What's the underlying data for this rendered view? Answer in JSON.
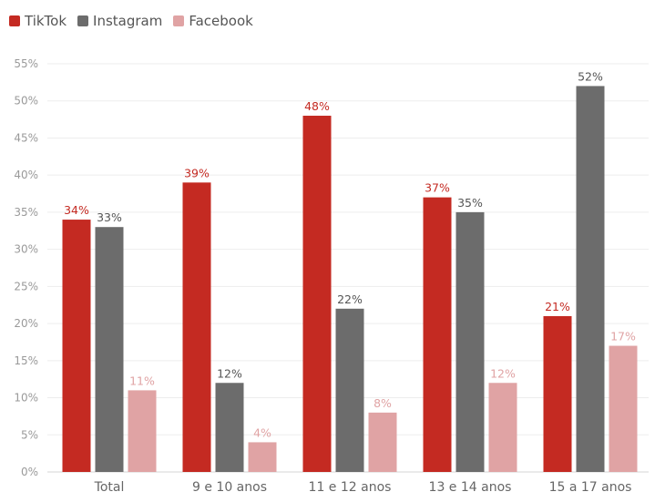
{
  "chart_data": {
    "type": "bar",
    "categories": [
      "Total",
      "9 e 10 anos",
      "11 e 12 anos",
      "13 e 14 anos",
      "15 a 17 anos"
    ],
    "series": [
      {
        "name": "TikTok",
        "color": "#c42a22",
        "values": [
          34,
          39,
          48,
          37,
          21
        ],
        "labels": [
          "34%",
          "39%",
          "48%",
          "37%",
          "21%"
        ]
      },
      {
        "name": "Instagram",
        "color": "#6c6c6c",
        "values": [
          33,
          12,
          22,
          35,
          52
        ],
        "labels": [
          "33%",
          "12%",
          "22%",
          "35%",
          "52%"
        ]
      },
      {
        "name": "Facebook",
        "color": "#e0a3a4",
        "values": [
          11,
          4,
          8,
          12,
          17
        ],
        "labels": [
          "11%",
          "4%",
          "8%",
          "12%",
          "17%"
        ]
      }
    ],
    "ylim": [
      0,
      55
    ],
    "yticks": [
      "0%",
      "5%",
      "10%",
      "15%",
      "20%",
      "25%",
      "30%",
      "35%",
      "40%",
      "45%",
      "50%",
      "55%"
    ],
    "grid": true,
    "legend_position": "top-left",
    "label_colors": {
      "TikTok": "#c42a22",
      "Instagram": "#555555",
      "Facebook": "#e0a3a4"
    }
  }
}
